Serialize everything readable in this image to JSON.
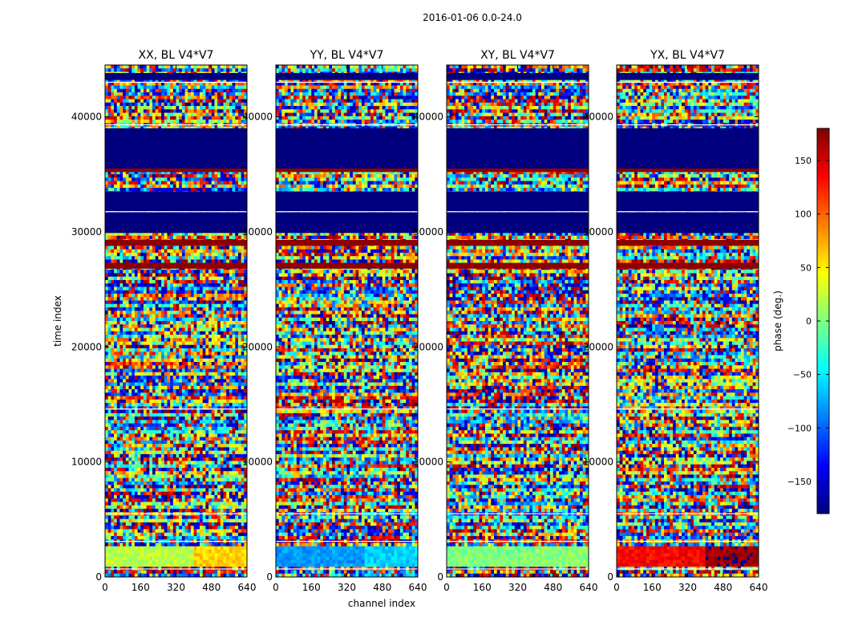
{
  "figure": {
    "suptitle": "2016-01-06 0.0-24.0"
  },
  "chart_data": {
    "type": "heatmap",
    "title": "2016-01-06 0.0-24.0",
    "xlabel": "channel index",
    "ylabel": "time index",
    "xlim": [
      0,
      640
    ],
    "ylim": [
      0,
      44500
    ],
    "xticks": [
      0,
      160,
      320,
      480,
      640
    ],
    "yticks": [
      0,
      10000,
      20000,
      30000,
      40000
    ],
    "colorbar": {
      "label": "phase (deg.)",
      "range": [
        -180,
        180
      ],
      "ticks": [
        150,
        100,
        50,
        0,
        -50,
        -100,
        -150
      ],
      "tick_labels": [
        "150",
        "100",
        "50",
        "0",
        "−50",
        "−100",
        "−150"
      ],
      "colormap": "jet",
      "colors": [
        "#00007f",
        "#0000ff",
        "#007fff",
        "#00ffff",
        "#7fff7f",
        "#ffff00",
        "#ff7f00",
        "#ff0000",
        "#7f0000"
      ]
    },
    "panels": [
      {
        "title": "XX, BL V4*V7",
        "low_band_phase_deg": 20,
        "low_band_right_phase_deg": 60
      },
      {
        "title": "YY, BL V4*V7",
        "low_band_phase_deg": -80,
        "low_band_right_phase_deg": -60
      },
      {
        "title": "XY, BL V4*V7",
        "low_band_phase_deg": 0,
        "low_band_right_phase_deg": 5
      },
      {
        "title": "YX, BL V4*V7",
        "low_band_phase_deg": 135,
        "low_band_right_phase_deg": 170
      }
    ],
    "solid_bands": [
      {
        "from": 35500,
        "to": 39000,
        "phase_deg": -180
      },
      {
        "from": 31800,
        "to": 33500,
        "phase_deg": -180
      },
      {
        "from": 29900,
        "to": 31700,
        "phase_deg": -180
      },
      {
        "from": 43200,
        "to": 43800,
        "phase_deg": -180
      },
      {
        "from": 35200,
        "to": 35500,
        "phase_deg": 175
      },
      {
        "from": 28800,
        "to": 29300,
        "phase_deg": 175
      },
      {
        "from": 26800,
        "to": 27300,
        "phase_deg": 175
      }
    ]
  }
}
